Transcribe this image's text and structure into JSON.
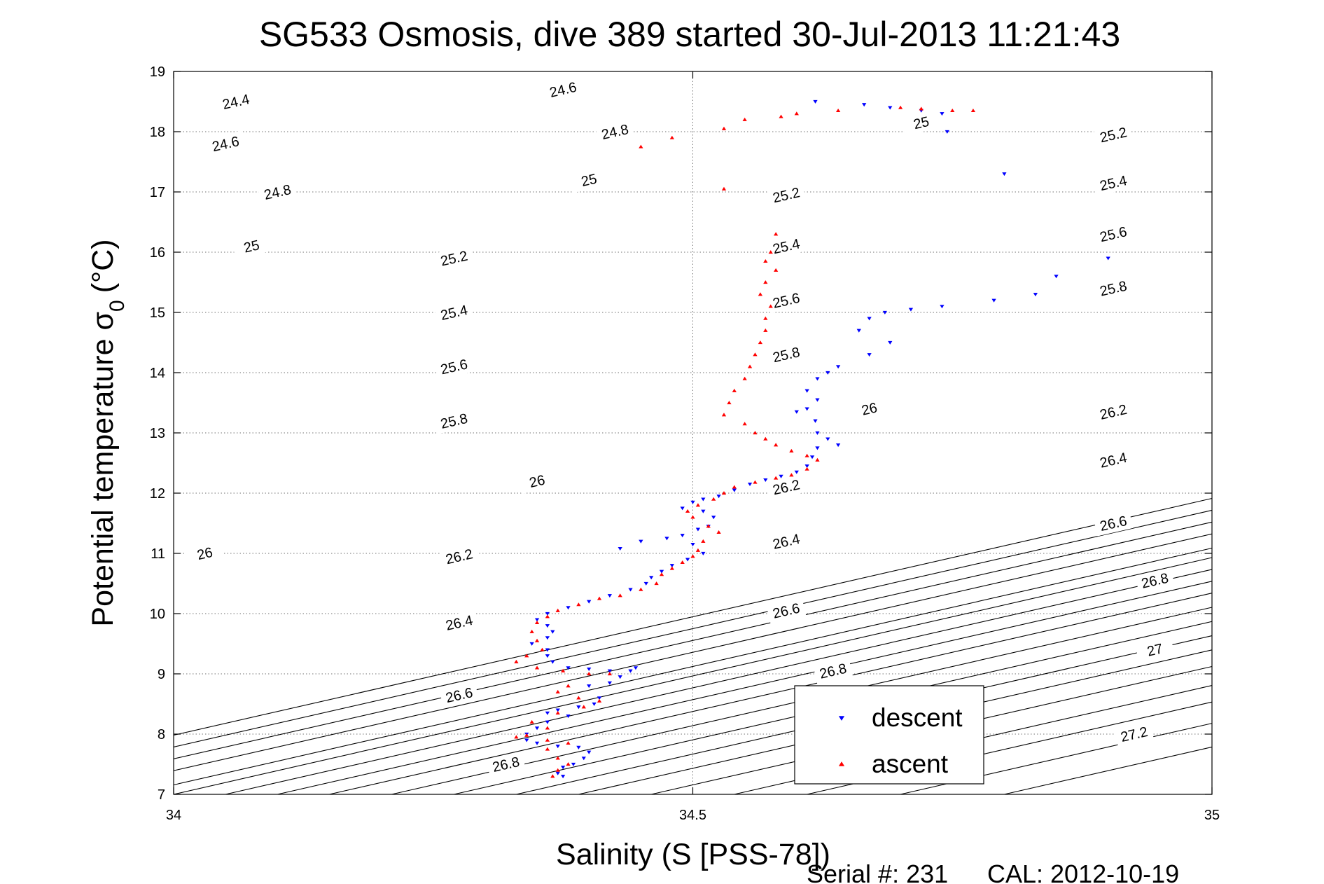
{
  "chart_data": {
    "type": "scatter",
    "title": "SG533 Osmosis, dive 389 started 30-Jul-2013 11:21:43",
    "xlabel": "Salinity (S [PSS-78])",
    "ylabel_main": "Potential temperature σ",
    "ylabel_sub": "0",
    "ylabel_unit": "(°C)",
    "xlim": [
      34,
      35
    ],
    "ylim": [
      7,
      19
    ],
    "x_ticks": [
      34,
      34.5,
      35
    ],
    "x_tick_labels": [
      "34",
      "34.5",
      "35"
    ],
    "y_ticks": [
      7,
      8,
      9,
      10,
      11,
      12,
      13,
      14,
      15,
      16,
      17,
      18,
      19
    ],
    "y_tick_labels": [
      "7",
      "8",
      "9",
      "10",
      "11",
      "12",
      "13",
      "14",
      "15",
      "16",
      "17",
      "18",
      "19"
    ],
    "grid": true,
    "legend_position": "bottom-right",
    "legend": [
      {
        "label": "descent",
        "color": "#0000ff",
        "marker": "triangle-down"
      },
      {
        "label": "ascent",
        "color": "#ff0000",
        "marker": "triangle-up"
      }
    ],
    "contours": {
      "slope_degC_per_psu": 3.93,
      "levels": [
        {
          "sigma": 24.4,
          "s_at_t7": 33.75,
          "labels": [
            {
              "s": 34.06,
              "t": 18.5,
              "text": "24.4"
            }
          ]
        },
        {
          "sigma": 24.6,
          "s_at_t7": 33.8,
          "labels": [
            {
              "s": 34.05,
              "t": 17.8,
              "text": "24.6"
            },
            {
              "s": 34.375,
              "t": 18.7,
              "text": "24.6"
            }
          ]
        },
        {
          "sigma": 24.8,
          "s_at_t7": 33.85,
          "labels": [
            {
              "s": 34.1,
              "t": 17.0,
              "text": "24.8"
            },
            {
              "s": 34.425,
              "t": 18.0,
              "text": "24.8"
            }
          ]
        },
        {
          "sigma": 25.0,
          "s_at_t7": 33.9,
          "labels": [
            {
              "s": 34.075,
              "t": 16.1,
              "text": "25"
            },
            {
              "s": 34.4,
              "t": 17.2,
              "text": "25"
            },
            {
              "s": 34.72,
              "t": 18.15,
              "text": "25"
            }
          ]
        },
        {
          "sigma": 25.2,
          "s_at_t7": 33.96,
          "labels": [
            {
              "s": 34.27,
              "t": 15.9,
              "text": "25.2"
            },
            {
              "s": 34.59,
              "t": 16.95,
              "text": "25.2"
            },
            {
              "s": 34.905,
              "t": 17.95,
              "text": "25.2"
            }
          ]
        },
        {
          "sigma": 25.4,
          "s_at_t7": 34.0,
          "labels": [
            {
              "s": 34.27,
              "t": 15.0,
              "text": "25.4"
            },
            {
              "s": 34.59,
              "t": 16.1,
              "text": "25.4"
            },
            {
              "s": 34.905,
              "t": 17.15,
              "text": "25.4"
            }
          ]
        },
        {
          "sigma": 25.6,
          "s_at_t7": 34.05,
          "labels": [
            {
              "s": 34.27,
              "t": 14.1,
              "text": "25.6"
            },
            {
              "s": 34.59,
              "t": 15.2,
              "text": "25.6"
            },
            {
              "s": 34.905,
              "t": 16.3,
              "text": "25.6"
            }
          ]
        },
        {
          "sigma": 25.8,
          "s_at_t7": 34.1,
          "labels": [
            {
              "s": 34.27,
              "t": 13.2,
              "text": "25.8"
            },
            {
              "s": 34.59,
              "t": 14.3,
              "text": "25.8"
            },
            {
              "s": 34.905,
              "t": 15.4,
              "text": "25.8"
            }
          ]
        },
        {
          "sigma": 26.0,
          "s_at_t7": 34.15,
          "labels": [
            {
              "s": 34.03,
              "t": 11.0,
              "text": "26"
            },
            {
              "s": 34.35,
              "t": 12.2,
              "text": "26"
            },
            {
              "s": 34.67,
              "t": 13.4,
              "text": "26"
            }
          ]
        },
        {
          "sigma": 26.2,
          "s_at_t7": 34.21,
          "labels": [
            {
              "s": 34.275,
              "t": 10.95,
              "text": "26.2"
            },
            {
              "s": 34.59,
              "t": 12.1,
              "text": "26.2"
            },
            {
              "s": 34.905,
              "t": 13.35,
              "text": "26.2"
            }
          ]
        },
        {
          "sigma": 26.4,
          "s_at_t7": 34.27,
          "labels": [
            {
              "s": 34.275,
              "t": 9.85,
              "text": "26.4"
            },
            {
              "s": 34.59,
              "t": 11.2,
              "text": "26.4"
            },
            {
              "s": 34.905,
              "t": 12.55,
              "text": "26.4"
            }
          ]
        },
        {
          "sigma": 26.6,
          "s_at_t7": 34.33,
          "labels": [
            {
              "s": 34.275,
              "t": 8.65,
              "text": "26.6"
            },
            {
              "s": 34.59,
              "t": 10.05,
              "text": "26.6"
            },
            {
              "s": 34.905,
              "t": 11.5,
              "text": "26.6"
            }
          ]
        },
        {
          "sigma": 26.8,
          "s_at_t7": 34.39,
          "labels": [
            {
              "s": 34.32,
              "t": 7.5,
              "text": "26.8"
            },
            {
              "s": 34.635,
              "t": 9.05,
              "text": "26.8"
            },
            {
              "s": 34.945,
              "t": 10.55,
              "text": "26.8"
            }
          ]
        },
        {
          "sigma": 27.0,
          "s_at_t7": 34.46,
          "labels": [
            {
              "s": 34.945,
              "t": 9.4,
              "text": "27"
            }
          ]
        },
        {
          "sigma": 27.2,
          "s_at_t7": 34.54,
          "labels": [
            {
              "s": 34.925,
              "t": 8.0,
              "text": "27.2"
            }
          ]
        },
        {
          "sigma": 27.4,
          "s_at_t7": 34.61,
          "labels": []
        },
        {
          "sigma": 27.6,
          "s_at_t7": 34.7,
          "labels": []
        },
        {
          "sigma": 27.8,
          "s_at_t7": 34.8,
          "labels": []
        }
      ]
    },
    "series": [
      {
        "name": "descent",
        "color": "#0000ff",
        "marker": "triangle-down",
        "points": [
          [
            34.618,
            18.5
          ],
          [
            34.665,
            18.45
          ],
          [
            34.69,
            18.4
          ],
          [
            34.72,
            18.35
          ],
          [
            34.74,
            18.3
          ],
          [
            34.745,
            18.0
          ],
          [
            34.8,
            17.3
          ],
          [
            34.9,
            15.9
          ],
          [
            34.85,
            15.6
          ],
          [
            34.83,
            15.3
          ],
          [
            34.79,
            15.2
          ],
          [
            34.74,
            15.1
          ],
          [
            34.71,
            15.05
          ],
          [
            34.685,
            15.0
          ],
          [
            34.67,
            14.9
          ],
          [
            34.66,
            14.7
          ],
          [
            34.69,
            14.5
          ],
          [
            34.67,
            14.3
          ],
          [
            34.64,
            14.1
          ],
          [
            34.63,
            14.0
          ],
          [
            34.62,
            13.9
          ],
          [
            34.61,
            13.7
          ],
          [
            34.62,
            13.55
          ],
          [
            34.61,
            13.4
          ],
          [
            34.6,
            13.35
          ],
          [
            34.618,
            13.2
          ],
          [
            34.62,
            13.0
          ],
          [
            34.63,
            12.9
          ],
          [
            34.64,
            12.8
          ],
          [
            34.62,
            12.75
          ],
          [
            34.615,
            12.6
          ],
          [
            34.61,
            12.45
          ],
          [
            34.6,
            12.35
          ],
          [
            34.585,
            12.28
          ],
          [
            34.57,
            12.22
          ],
          [
            34.555,
            12.15
          ],
          [
            34.54,
            12.05
          ],
          [
            34.525,
            11.95
          ],
          [
            34.51,
            11.9
          ],
          [
            34.5,
            11.85
          ],
          [
            34.49,
            11.75
          ],
          [
            34.51,
            11.7
          ],
          [
            34.52,
            11.6
          ],
          [
            34.515,
            11.45
          ],
          [
            34.505,
            11.4
          ],
          [
            34.49,
            11.3
          ],
          [
            34.475,
            11.25
          ],
          [
            34.45,
            11.2
          ],
          [
            34.43,
            11.08
          ],
          [
            34.5,
            11.15
          ],
          [
            34.51,
            11.0
          ],
          [
            34.495,
            10.9
          ],
          [
            34.48,
            10.8
          ],
          [
            34.47,
            10.7
          ],
          [
            34.46,
            10.6
          ],
          [
            34.455,
            10.5
          ],
          [
            34.44,
            10.4
          ],
          [
            34.42,
            10.3
          ],
          [
            34.4,
            10.2
          ],
          [
            34.38,
            10.1
          ],
          [
            34.36,
            10.0
          ],
          [
            34.35,
            9.9
          ],
          [
            34.36,
            9.8
          ],
          [
            34.365,
            9.7
          ],
          [
            34.36,
            9.6
          ],
          [
            34.345,
            9.5
          ],
          [
            34.36,
            9.4
          ],
          [
            34.36,
            9.3
          ],
          [
            34.365,
            9.2
          ],
          [
            34.38,
            9.1
          ],
          [
            34.4,
            9.08
          ],
          [
            34.42,
            9.05
          ],
          [
            34.44,
            9.05
          ],
          [
            34.445,
            9.1
          ],
          [
            34.43,
            8.95
          ],
          [
            34.42,
            8.85
          ],
          [
            34.4,
            8.8
          ],
          [
            34.41,
            8.6
          ],
          [
            34.405,
            8.5
          ],
          [
            34.39,
            8.45
          ],
          [
            34.37,
            8.4
          ],
          [
            34.36,
            8.35
          ],
          [
            34.38,
            8.3
          ],
          [
            34.36,
            8.2
          ],
          [
            34.35,
            8.1
          ],
          [
            34.34,
            8.0
          ],
          [
            34.34,
            7.9
          ],
          [
            34.35,
            7.85
          ],
          [
            34.37,
            7.8
          ],
          [
            34.39,
            7.78
          ],
          [
            34.4,
            7.7
          ],
          [
            34.395,
            7.6
          ],
          [
            34.385,
            7.5
          ],
          [
            34.375,
            7.45
          ],
          [
            34.37,
            7.35
          ],
          [
            34.375,
            7.3
          ]
        ]
      },
      {
        "name": "ascent",
        "color": "#ff0000",
        "marker": "triangle-up",
        "points": [
          [
            34.7,
            18.4
          ],
          [
            34.72,
            18.38
          ],
          [
            34.75,
            18.35
          ],
          [
            34.77,
            18.35
          ],
          [
            34.64,
            18.35
          ],
          [
            34.6,
            18.3
          ],
          [
            34.585,
            18.25
          ],
          [
            34.55,
            18.2
          ],
          [
            34.53,
            18.05
          ],
          [
            34.48,
            17.9
          ],
          [
            34.45,
            17.75
          ],
          [
            34.53,
            17.05
          ],
          [
            34.58,
            16.3
          ],
          [
            34.575,
            16.0
          ],
          [
            34.57,
            15.85
          ],
          [
            34.58,
            15.7
          ],
          [
            34.57,
            15.5
          ],
          [
            34.565,
            15.3
          ],
          [
            34.575,
            15.1
          ],
          [
            34.57,
            14.9
          ],
          [
            34.57,
            14.7
          ],
          [
            34.565,
            14.5
          ],
          [
            34.56,
            14.3
          ],
          [
            34.555,
            14.1
          ],
          [
            34.55,
            13.9
          ],
          [
            34.54,
            13.7
          ],
          [
            34.535,
            13.5
          ],
          [
            34.53,
            13.3
          ],
          [
            34.55,
            13.15
          ],
          [
            34.56,
            13.0
          ],
          [
            34.57,
            12.9
          ],
          [
            34.58,
            12.8
          ],
          [
            34.595,
            12.7
          ],
          [
            34.61,
            12.62
          ],
          [
            34.62,
            12.55
          ],
          [
            34.61,
            12.4
          ],
          [
            34.595,
            12.3
          ],
          [
            34.58,
            12.25
          ],
          [
            34.56,
            12.18
          ],
          [
            34.54,
            12.1
          ],
          [
            34.53,
            12.0
          ],
          [
            34.52,
            11.9
          ],
          [
            34.505,
            11.8
          ],
          [
            34.495,
            11.7
          ],
          [
            34.5,
            11.6
          ],
          [
            34.515,
            11.45
          ],
          [
            34.525,
            11.35
          ],
          [
            34.51,
            11.2
          ],
          [
            34.505,
            11.05
          ],
          [
            34.5,
            10.95
          ],
          [
            34.49,
            10.85
          ],
          [
            34.48,
            10.75
          ],
          [
            34.47,
            10.65
          ],
          [
            34.465,
            10.5
          ],
          [
            34.45,
            10.4
          ],
          [
            34.43,
            10.3
          ],
          [
            34.41,
            10.25
          ],
          [
            34.39,
            10.15
          ],
          [
            34.37,
            10.05
          ],
          [
            34.36,
            9.95
          ],
          [
            34.35,
            9.85
          ],
          [
            34.345,
            9.7
          ],
          [
            34.35,
            9.55
          ],
          [
            34.355,
            9.4
          ],
          [
            34.34,
            9.3
          ],
          [
            34.33,
            9.2
          ],
          [
            34.35,
            9.1
          ],
          [
            34.375,
            9.05
          ],
          [
            34.4,
            9.0
          ],
          [
            34.42,
            9.0
          ],
          [
            34.38,
            8.8
          ],
          [
            34.37,
            8.7
          ],
          [
            34.39,
            8.6
          ],
          [
            34.41,
            8.55
          ],
          [
            34.395,
            8.45
          ],
          [
            34.37,
            8.35
          ],
          [
            34.345,
            8.2
          ],
          [
            34.36,
            8.1
          ],
          [
            34.34,
            7.98
          ],
          [
            34.33,
            7.95
          ],
          [
            34.36,
            7.9
          ],
          [
            34.38,
            7.85
          ],
          [
            34.36,
            7.75
          ],
          [
            34.37,
            7.6
          ],
          [
            34.38,
            7.5
          ],
          [
            34.37,
            7.4
          ],
          [
            34.365,
            7.3
          ]
        ]
      }
    ]
  },
  "footer": {
    "serial_label": "Serial #: 231",
    "cal_label": "CAL: 2012-10-19"
  }
}
